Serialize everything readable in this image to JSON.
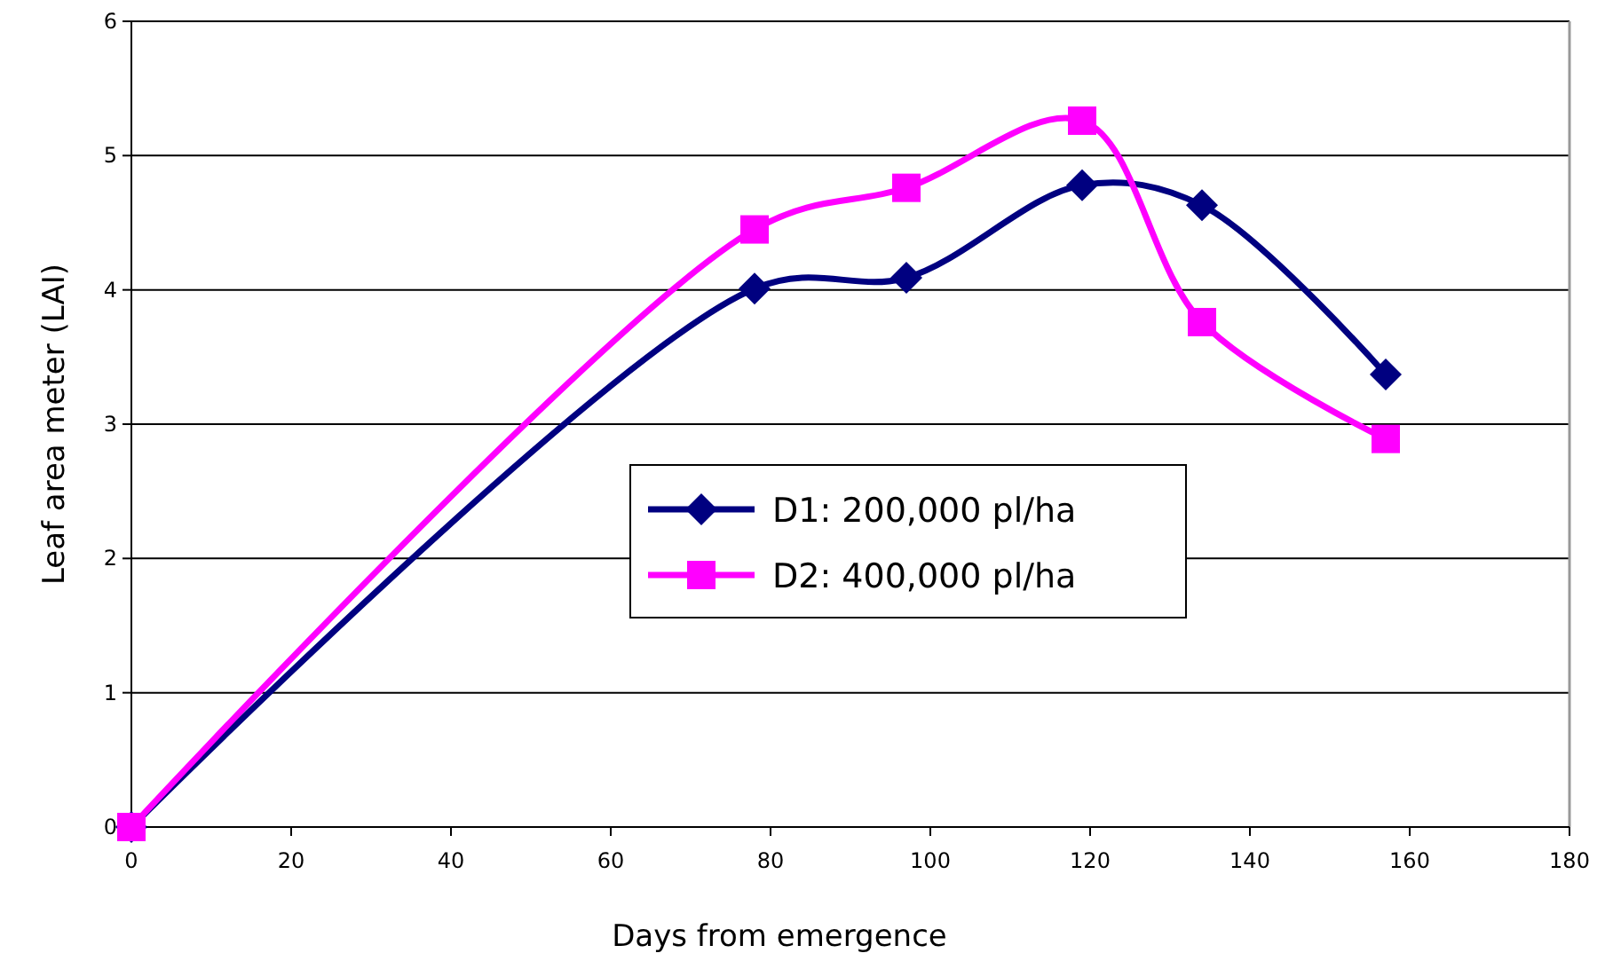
{
  "chart_data": {
    "type": "line",
    "xlabel": "Days from emergence",
    "ylabel": "Leaf area meter (LAI)",
    "x": [
      0,
      78,
      97,
      119,
      134,
      157
    ],
    "series": [
      {
        "name": "D1: 200,000 pl/ha",
        "color": "#000080",
        "marker": "diamond",
        "values": [
          0,
          4.01,
          4.09,
          4.78,
          4.63,
          3.37
        ]
      },
      {
        "name": "D2: 400,000 pl/ha",
        "color": "#ff00ff",
        "marker": "square",
        "values": [
          0,
          4.45,
          4.76,
          5.26,
          3.76,
          2.89
        ]
      }
    ],
    "xlim": [
      0,
      180
    ],
    "xticks": [
      0,
      20,
      40,
      60,
      80,
      100,
      120,
      140,
      160,
      180
    ],
    "ylim": [
      0,
      6
    ],
    "yticks": [
      0,
      1,
      2,
      3,
      4,
      5,
      6
    ],
    "grid": "y",
    "legend": "center",
    "line_style": "solid"
  }
}
